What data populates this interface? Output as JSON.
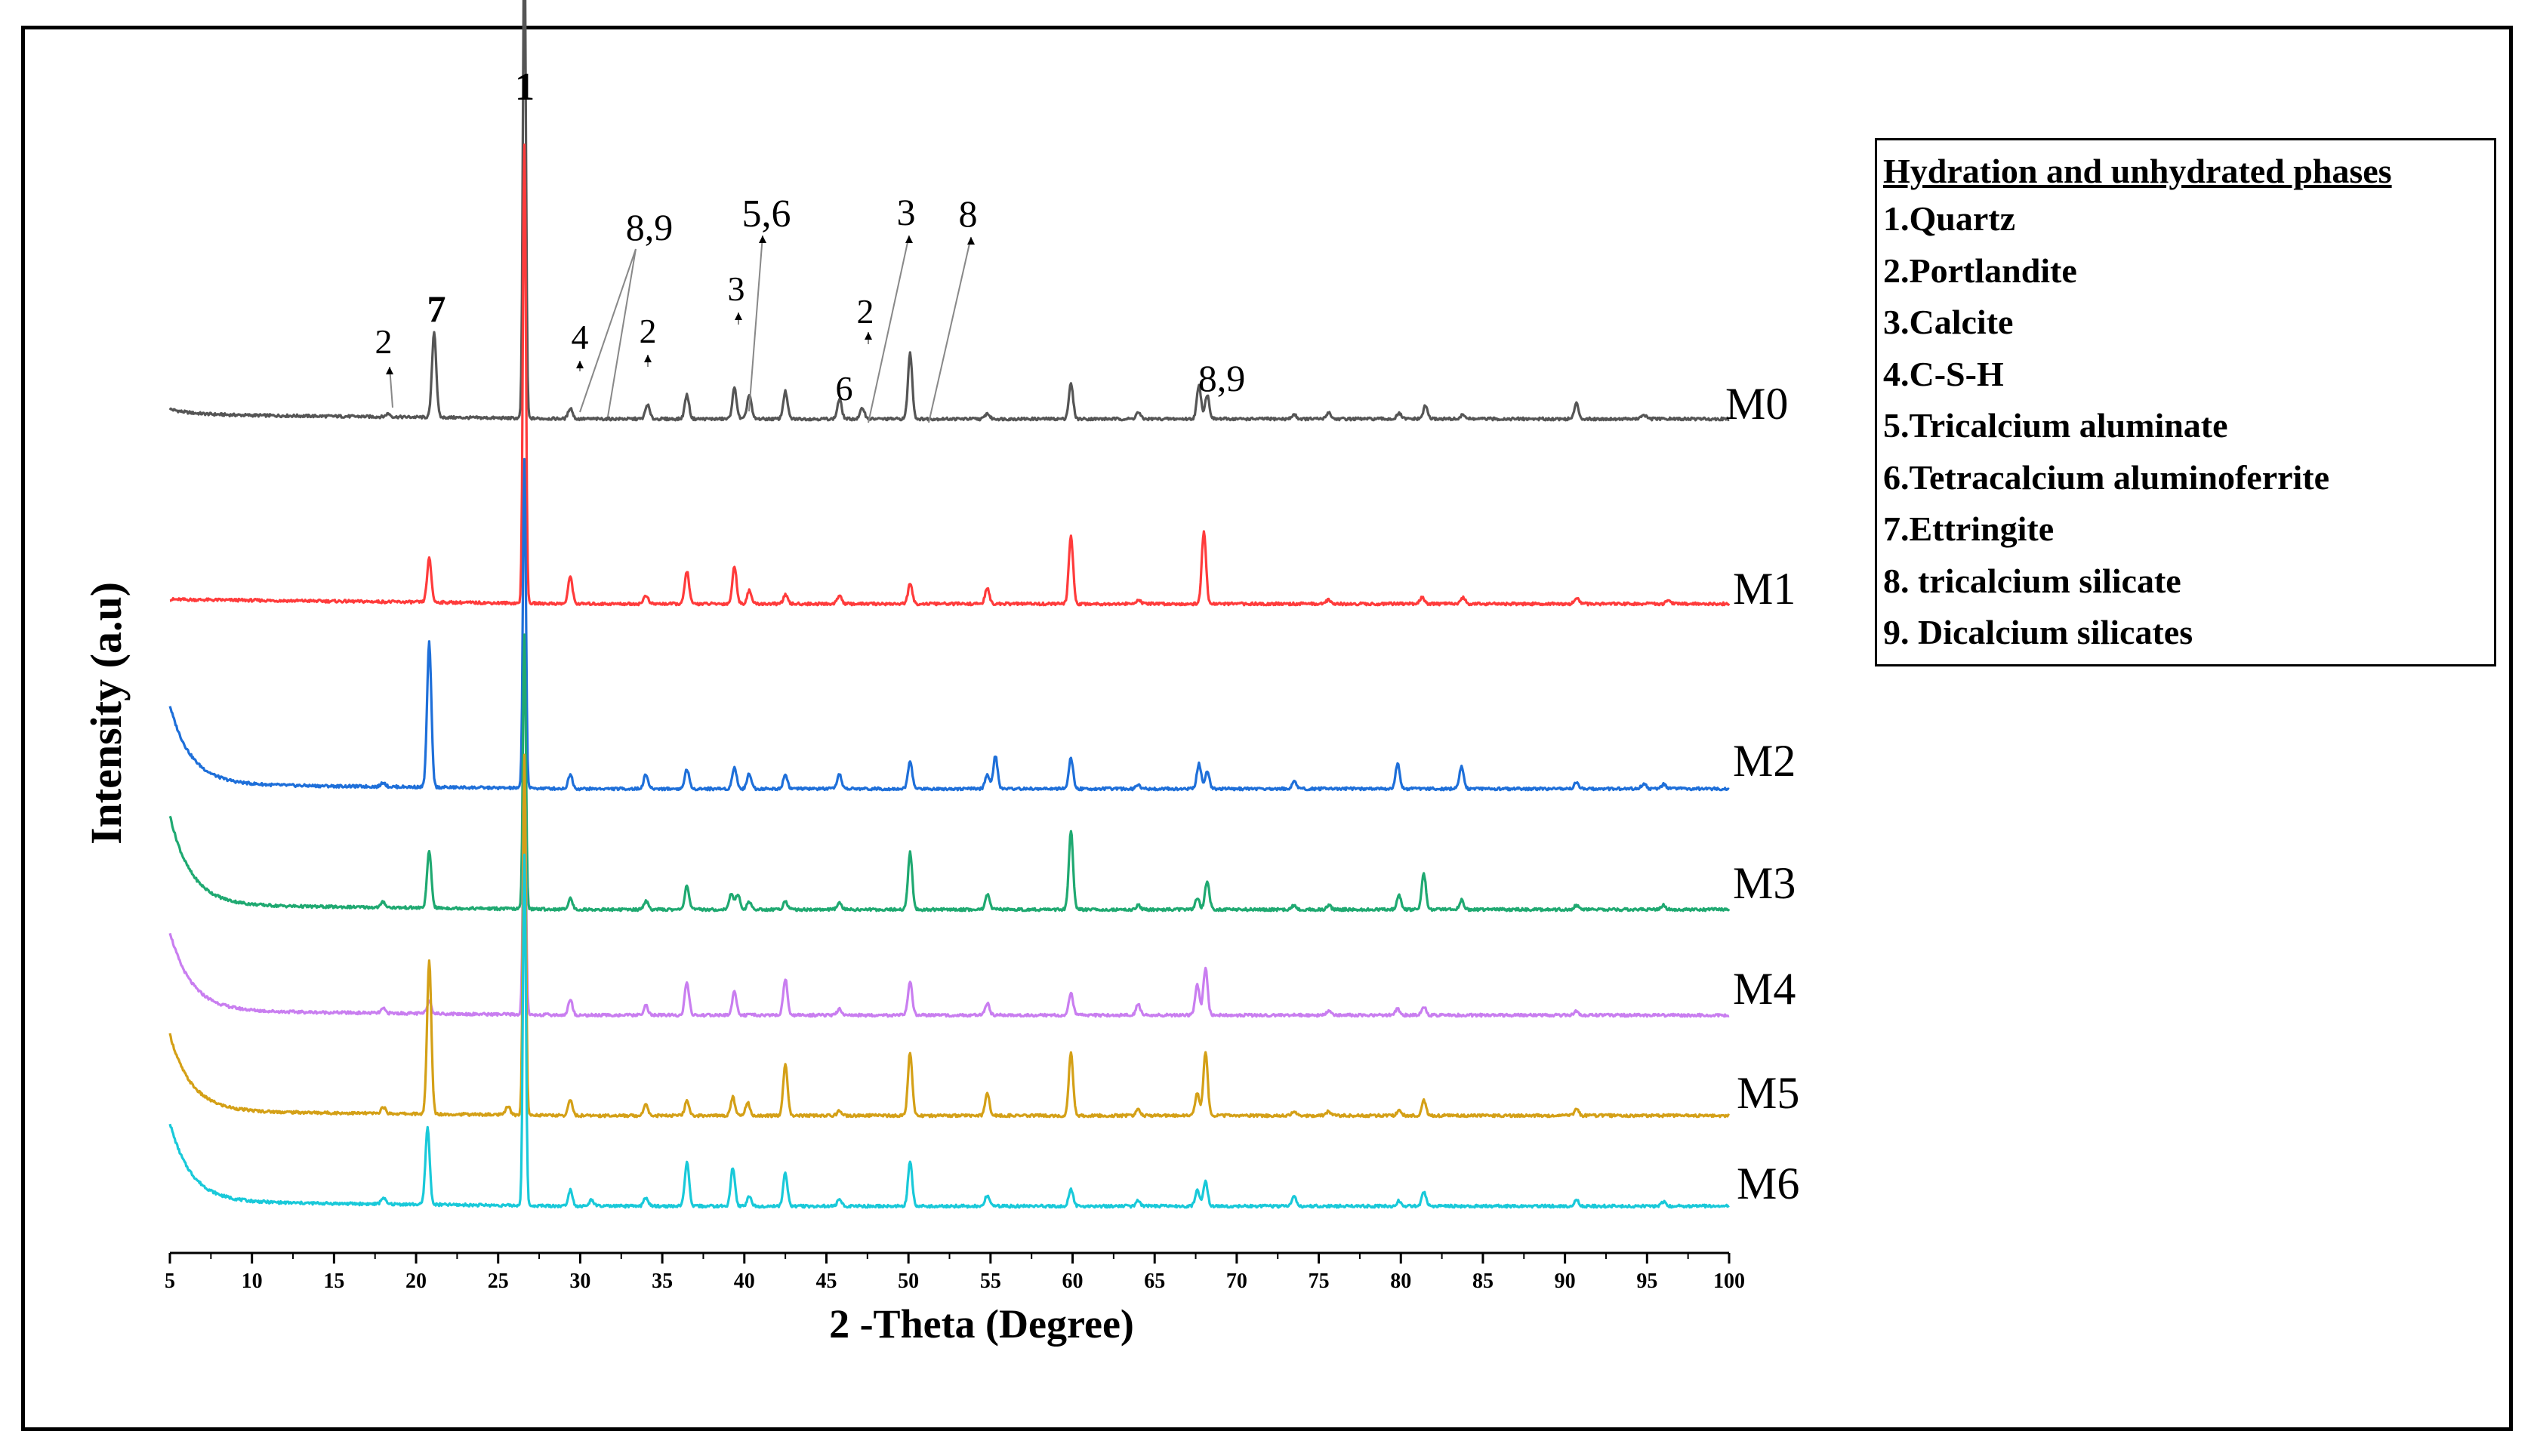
{
  "chart_data": {
    "type": "line",
    "title": "",
    "xlabel": "2 -Theta (Degree)",
    "ylabel": "Intensity (a.u)",
    "xlim": [
      5,
      100
    ],
    "xticks": [
      5,
      10,
      15,
      20,
      25,
      30,
      35,
      40,
      45,
      50,
      55,
      60,
      65,
      70,
      75,
      80,
      85,
      90,
      95,
      100
    ],
    "legend": {
      "position": "top-right",
      "title": "Hydration and unhydrated phases",
      "items": [
        "1.Quartz",
        "2.Portlandite",
        "3.Calcite",
        "4.C-S-H",
        "5.Tricalcium aluminate",
        "6.Tetracalcium aluminoferrite",
        "7.Ettringite",
        "8. tricalcium silicate",
        "9. Dicalcium silicates"
      ]
    },
    "series": [
      {
        "name": "M0",
        "color": "#555555",
        "baseline": 1.0,
        "start_rise": 0.05,
        "peaks": [
          [
            18.3,
            0.03
          ],
          [
            21.1,
            0.78
          ],
          [
            26.6,
            4.5
          ],
          [
            29.4,
            0.1
          ],
          [
            34.1,
            0.13
          ],
          [
            36.5,
            0.22
          ],
          [
            39.4,
            0.28
          ],
          [
            40.3,
            0.22
          ],
          [
            42.5,
            0.25
          ],
          [
            45.8,
            0.18
          ],
          [
            47.2,
            0.1
          ],
          [
            50.1,
            0.6
          ],
          [
            54.8,
            0.05
          ],
          [
            59.9,
            0.32
          ],
          [
            64.0,
            0.06
          ],
          [
            67.7,
            0.3
          ],
          [
            68.2,
            0.22
          ],
          [
            73.5,
            0.04
          ],
          [
            75.6,
            0.06
          ],
          [
            79.9,
            0.05
          ],
          [
            81.5,
            0.12
          ],
          [
            83.8,
            0.04
          ],
          [
            90.7,
            0.14
          ],
          [
            94.8,
            0.04
          ]
        ]
      },
      {
        "name": "M1",
        "color": "#ff3b3b",
        "baseline": 0.45,
        "start_rise": 0.0,
        "peaks": [
          [
            20.8,
            0.4
          ],
          [
            26.6,
            4.2
          ],
          [
            29.4,
            0.25
          ],
          [
            34.0,
            0.08
          ],
          [
            36.5,
            0.3
          ],
          [
            39.4,
            0.34
          ],
          [
            40.3,
            0.12
          ],
          [
            42.5,
            0.08
          ],
          [
            45.8,
            0.08
          ],
          [
            50.1,
            0.18
          ],
          [
            54.8,
            0.14
          ],
          [
            59.9,
            0.62
          ],
          [
            64.0,
            0.04
          ],
          [
            68.0,
            0.66
          ],
          [
            75.6,
            0.04
          ],
          [
            81.3,
            0.06
          ],
          [
            83.8,
            0.06
          ],
          [
            90.7,
            0.06
          ],
          [
            96.3,
            0.04
          ]
        ]
      },
      {
        "name": "M2",
        "color": "#1e6fd9",
        "baseline": 0.0,
        "start_rise": 0.72,
        "peaks": [
          [
            18.0,
            0.04
          ],
          [
            20.8,
            1.32
          ],
          [
            26.6,
            3.0
          ],
          [
            29.4,
            0.13
          ],
          [
            34.0,
            0.13
          ],
          [
            36.5,
            0.18
          ],
          [
            39.4,
            0.2
          ],
          [
            40.3,
            0.14
          ],
          [
            42.5,
            0.13
          ],
          [
            45.8,
            0.13
          ],
          [
            50.1,
            0.25
          ],
          [
            54.8,
            0.13
          ],
          [
            55.3,
            0.3
          ],
          [
            59.9,
            0.28
          ],
          [
            64.0,
            0.04
          ],
          [
            67.7,
            0.23
          ],
          [
            68.2,
            0.16
          ],
          [
            73.5,
            0.07
          ],
          [
            79.8,
            0.23
          ],
          [
            83.7,
            0.2
          ],
          [
            90.7,
            0.06
          ],
          [
            94.8,
            0.05
          ],
          [
            96.0,
            0.04
          ]
        ]
      },
      {
        "name": "M3",
        "color": "#1fa971",
        "baseline": 0.0,
        "start_rise": 0.82,
        "peaks": [
          [
            18.0,
            0.05
          ],
          [
            20.8,
            0.52
          ],
          [
            26.6,
            2.5
          ],
          [
            29.4,
            0.1
          ],
          [
            34.0,
            0.08
          ],
          [
            36.5,
            0.22
          ],
          [
            39.2,
            0.14
          ],
          [
            39.6,
            0.14
          ],
          [
            40.3,
            0.07
          ],
          [
            42.5,
            0.08
          ],
          [
            45.8,
            0.06
          ],
          [
            50.1,
            0.52
          ],
          [
            54.8,
            0.14
          ],
          [
            59.9,
            0.72
          ],
          [
            64.0,
            0.04
          ],
          [
            67.6,
            0.1
          ],
          [
            68.2,
            0.26
          ],
          [
            73.5,
            0.04
          ],
          [
            75.6,
            0.04
          ],
          [
            79.9,
            0.13
          ],
          [
            81.4,
            0.32
          ],
          [
            83.7,
            0.09
          ],
          [
            90.7,
            0.04
          ],
          [
            96.0,
            0.04
          ]
        ]
      },
      {
        "name": "M4",
        "color": "#c97ef0",
        "baseline": 0.0,
        "start_rise": 0.72,
        "peaks": [
          [
            18.0,
            0.04
          ],
          [
            20.8,
            0.12
          ],
          [
            26.6,
            2.2
          ],
          [
            29.4,
            0.14
          ],
          [
            34.0,
            0.09
          ],
          [
            36.5,
            0.3
          ],
          [
            39.4,
            0.22
          ],
          [
            42.5,
            0.33
          ],
          [
            45.8,
            0.06
          ],
          [
            50.1,
            0.3
          ],
          [
            54.8,
            0.11
          ],
          [
            59.9,
            0.2
          ],
          [
            64.0,
            0.1
          ],
          [
            67.6,
            0.28
          ],
          [
            68.1,
            0.43
          ],
          [
            75.6,
            0.04
          ],
          [
            79.8,
            0.06
          ],
          [
            81.4,
            0.08
          ],
          [
            90.7,
            0.04
          ]
        ]
      },
      {
        "name": "M5",
        "color": "#d4a017",
        "baseline": 0.0,
        "start_rise": 0.7,
        "peaks": [
          [
            18.0,
            0.06
          ],
          [
            20.8,
            1.4
          ],
          [
            25.6,
            0.08
          ],
          [
            26.6,
            3.3
          ],
          [
            29.4,
            0.14
          ],
          [
            34.0,
            0.11
          ],
          [
            36.5,
            0.13
          ],
          [
            39.3,
            0.17
          ],
          [
            40.2,
            0.12
          ],
          [
            42.5,
            0.47
          ],
          [
            45.8,
            0.05
          ],
          [
            50.1,
            0.58
          ],
          [
            54.8,
            0.2
          ],
          [
            59.9,
            0.58
          ],
          [
            64.0,
            0.06
          ],
          [
            67.6,
            0.2
          ],
          [
            68.1,
            0.58
          ],
          [
            73.5,
            0.04
          ],
          [
            75.6,
            0.04
          ],
          [
            79.9,
            0.05
          ],
          [
            81.4,
            0.14
          ],
          [
            90.7,
            0.06
          ]
        ]
      },
      {
        "name": "M6",
        "color": "#19c9d9",
        "baseline": 0.0,
        "start_rise": 0.72,
        "peaks": [
          [
            18.0,
            0.06
          ],
          [
            20.7,
            0.7
          ],
          [
            26.6,
            3.2
          ],
          [
            29.4,
            0.15
          ],
          [
            30.7,
            0.06
          ],
          [
            34.0,
            0.08
          ],
          [
            36.5,
            0.4
          ],
          [
            39.3,
            0.35
          ],
          [
            40.3,
            0.09
          ],
          [
            42.5,
            0.3
          ],
          [
            45.8,
            0.06
          ],
          [
            50.1,
            0.4
          ],
          [
            54.8,
            0.1
          ],
          [
            59.9,
            0.16
          ],
          [
            64.0,
            0.05
          ],
          [
            67.6,
            0.14
          ],
          [
            68.1,
            0.22
          ],
          [
            73.5,
            0.09
          ],
          [
            79.9,
            0.05
          ],
          [
            81.4,
            0.13
          ],
          [
            90.7,
            0.06
          ],
          [
            96.0,
            0.04
          ]
        ]
      }
    ],
    "annotations": [
      {
        "text": "1",
        "x": 26.6
      },
      {
        "text": "2",
        "x": 18.3
      },
      {
        "text": "7",
        "x": 21.1
      },
      {
        "text": "4",
        "x": 29.4
      },
      {
        "text": "8,9",
        "x": 31.0
      },
      {
        "text": "2",
        "x": 34.1
      },
      {
        "text": "3",
        "x": 39.4
      },
      {
        "text": "5,6",
        "x": 40.3
      },
      {
        "text": "6",
        "x": 45.8
      },
      {
        "text": "2",
        "x": 47.2
      },
      {
        "text": "3",
        "x": 49.2
      },
      {
        "text": "8",
        "x": 51.0
      },
      {
        "text": "8,9",
        "x": 67.9
      }
    ]
  }
}
